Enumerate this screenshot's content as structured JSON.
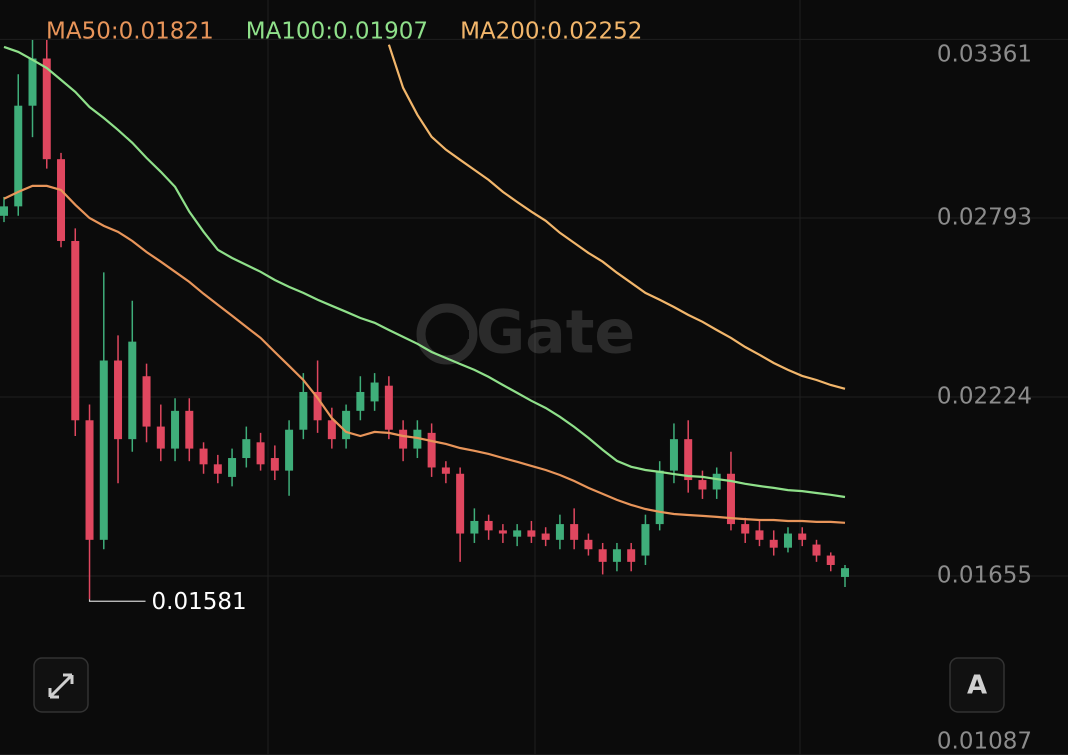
{
  "chart_data": {
    "type": "candlestick",
    "watermark": "Gate",
    "auto_button": "A",
    "up_color": "#3fae7a",
    "down_color": "#e0475f",
    "grid": true,
    "ylim": [
      0.01086,
      0.03486
    ],
    "yticks": [
      0.03361,
      0.02793,
      0.02224,
      0.01655,
      0.01087
    ],
    "low_annotation": 0.01581,
    "open": [
      0.028,
      0.0283,
      0.0315,
      0.033,
      0.0298,
      0.0272,
      0.0215,
      0.0177,
      0.0234,
      0.0209,
      0.0229,
      0.0213,
      0.0206,
      0.0218,
      0.0206,
      0.0201,
      0.0197,
      0.0203,
      0.0208,
      0.0203,
      0.0199,
      0.0212,
      0.0224,
      0.0215,
      0.0209,
      0.0218,
      0.0221,
      0.0226,
      0.0212,
      0.0206,
      0.0211,
      0.02,
      0.0198,
      0.0179,
      0.0183,
      0.018,
      0.0178,
      0.018,
      0.0179,
      0.0177,
      0.0182,
      0.0177,
      0.0174,
      0.017,
      0.0174,
      0.0172,
      0.0182,
      0.0199,
      0.0209,
      0.0196,
      0.0193,
      0.0198,
      0.0182,
      0.018,
      0.0177,
      0.01745,
      0.0179,
      0.01755,
      0.0172,
      0.01652
    ],
    "high": [
      0.0286,
      0.0325,
      0.03359,
      0.03359,
      0.03,
      0.0276,
      0.022,
      0.0262,
      0.0242,
      0.0253,
      0.0233,
      0.022,
      0.0222,
      0.0222,
      0.0208,
      0.0204,
      0.0206,
      0.0213,
      0.0211,
      0.0207,
      0.0215,
      0.023,
      0.0234,
      0.0219,
      0.022,
      0.0229,
      0.023,
      0.0229,
      0.0215,
      0.0215,
      0.0214,
      0.0202,
      0.02,
      0.0187,
      0.0185,
      0.0182,
      0.0182,
      0.0183,
      0.0181,
      0.0185,
      0.0187,
      0.0179,
      0.0176,
      0.0176,
      0.0176,
      0.0185,
      0.0202,
      0.0214,
      0.0215,
      0.0199,
      0.02,
      0.0205,
      0.0184,
      0.0183,
      0.018,
      0.0181,
      0.0181,
      0.0177,
      0.0173,
      0.0169
    ],
    "low": [
      0.0278,
      0.028,
      0.0305,
      0.0295,
      0.027,
      0.021,
      0.01581,
      0.0174,
      0.0195,
      0.0205,
      0.0208,
      0.0202,
      0.0202,
      0.0202,
      0.0198,
      0.0195,
      0.0194,
      0.02,
      0.0199,
      0.0196,
      0.0191,
      0.0209,
      0.0211,
      0.0206,
      0.0206,
      0.0215,
      0.0218,
      0.0209,
      0.0202,
      0.0203,
      0.0197,
      0.0195,
      0.017,
      0.0176,
      0.0177,
      0.0176,
      0.0175,
      0.0176,
      0.0175,
      0.0174,
      0.0174,
      0.0172,
      0.0166,
      0.0167,
      0.0167,
      0.0169,
      0.018,
      0.0195,
      0.0192,
      0.019,
      0.019,
      0.018,
      0.0176,
      0.0175,
      0.0172,
      0.0173,
      0.0175,
      0.017,
      0.0167,
      0.0162
    ],
    "close": [
      0.0283,
      0.0315,
      0.033,
      0.0298,
      0.0272,
      0.0215,
      0.0177,
      0.0234,
      0.0209,
      0.024,
      0.0213,
      0.0206,
      0.0218,
      0.0206,
      0.0201,
      0.0198,
      0.0203,
      0.0209,
      0.0201,
      0.0199,
      0.0212,
      0.0224,
      0.0215,
      0.0209,
      0.0218,
      0.0224,
      0.0227,
      0.0212,
      0.0206,
      0.0212,
      0.02,
      0.0198,
      0.0179,
      0.0183,
      0.018,
      0.0179,
      0.018,
      0.0178,
      0.0177,
      0.0182,
      0.0177,
      0.0174,
      0.017,
      0.0174,
      0.017,
      0.0182,
      0.0199,
      0.0209,
      0.0196,
      0.0193,
      0.0198,
      0.0182,
      0.0179,
      0.0177,
      0.01745,
      0.0179,
      0.0177,
      0.0172,
      0.0169,
      0.0168
    ],
    "series": [
      {
        "name": "MA50:0.01821",
        "color": "#e8955a",
        "values": [
          0.02854,
          0.02876,
          0.02895,
          0.02895,
          0.02882,
          0.02835,
          0.02793,
          0.02768,
          0.02749,
          0.0272,
          0.02685,
          0.02654,
          0.02622,
          0.0259,
          0.02552,
          0.02517,
          0.02482,
          0.02447,
          0.02412,
          0.02367,
          0.02323,
          0.02278,
          0.02221,
          0.02157,
          0.02113,
          0.021,
          0.02113,
          0.0211,
          0.021,
          0.02094,
          0.02084,
          0.02075,
          0.02062,
          0.02053,
          0.02043,
          0.0203,
          0.02018,
          0.02005,
          0.01992,
          0.01976,
          0.01957,
          0.01935,
          0.01916,
          0.01897,
          0.01881,
          0.01868,
          0.01859,
          0.01852,
          0.01849,
          0.01846,
          0.01843,
          0.01839,
          0.01836,
          0.01833,
          0.01833,
          0.0183,
          0.0183,
          0.01827,
          0.01827,
          0.01824
        ]
      },
      {
        "name": "MA100:0.01907",
        "color": "#8fe08a",
        "values": [
          0.03337,
          0.03321,
          0.03296,
          0.0327,
          0.03232,
          0.03194,
          0.03146,
          0.03111,
          0.03073,
          0.03032,
          0.02984,
          0.0294,
          0.02892,
          0.02813,
          0.02749,
          0.02692,
          0.02666,
          0.02644,
          0.02622,
          0.02596,
          0.02574,
          0.02555,
          0.02533,
          0.02514,
          0.02495,
          0.02475,
          0.0246,
          0.02437,
          0.02415,
          0.02393,
          0.02367,
          0.02348,
          0.02329,
          0.0231,
          0.02288,
          0.02262,
          0.02237,
          0.02212,
          0.02189,
          0.02161,
          0.02129,
          0.02094,
          0.02056,
          0.02021,
          0.02002,
          0.01992,
          0.01986,
          0.01979,
          0.01973,
          0.0197,
          0.01963,
          0.01957,
          0.01948,
          0.01941,
          0.01935,
          0.01928,
          0.01925,
          0.01919,
          0.01913,
          0.01906
        ]
      },
      {
        "name": "MA200:0.02252",
        "color": "#f2b66b",
        "values": [
          null,
          null,
          null,
          null,
          null,
          null,
          null,
          null,
          null,
          null,
          null,
          null,
          null,
          null,
          null,
          null,
          null,
          null,
          null,
          null,
          null,
          null,
          null,
          null,
          null,
          null,
          null,
          0.03344,
          0.03207,
          0.03121,
          0.03051,
          0.0301,
          0.02978,
          0.02946,
          0.02914,
          0.02876,
          0.02844,
          0.02813,
          0.02784,
          0.02746,
          0.02714,
          0.02682,
          0.02654,
          0.02619,
          0.02587,
          0.02555,
          0.02533,
          0.0251,
          0.02485,
          0.02463,
          0.02437,
          0.02412,
          0.02383,
          0.02358,
          0.02332,
          0.0231,
          0.02291,
          0.02278,
          0.02262,
          0.0225
        ]
      }
    ]
  }
}
